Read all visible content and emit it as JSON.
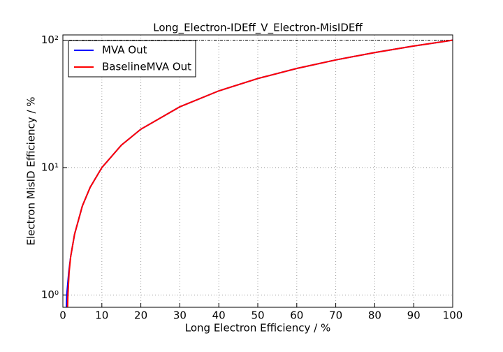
{
  "chart_data": {
    "type": "line",
    "title": "Long_Electron-IDEff_V_Electron-MisIDEff",
    "xlabel": "Long Electron Efficiency / %",
    "ylabel": "Electron MisID Efficiency / %",
    "xlim": [
      0,
      100
    ],
    "xticks": [
      0,
      10,
      20,
      30,
      40,
      50,
      60,
      70,
      80,
      90,
      100
    ],
    "ylim": [
      0.8,
      110
    ],
    "yscale": "log",
    "yticks": [
      {
        "value": 1,
        "label": "10⁰"
      },
      {
        "value": 10,
        "label": "10¹"
      },
      {
        "value": 100,
        "label": "10²"
      }
    ],
    "grid": true,
    "legend": "upper left",
    "hline": 100,
    "series": [
      {
        "name": "MVA Out",
        "color": "#0000ff",
        "x": [
          0.9,
          1,
          1.5,
          2,
          3,
          5,
          7,
          10,
          15,
          20,
          30,
          40,
          50,
          60,
          70,
          80,
          90,
          100
        ],
        "values": [
          0.8,
          1,
          1.5,
          2,
          3,
          5,
          7,
          10,
          15,
          20,
          30,
          40,
          50,
          60,
          70,
          80,
          90,
          100
        ]
      },
      {
        "name": "BaselineMVA Out",
        "color": "#ff0000",
        "x": [
          1.2,
          1.3,
          1.6,
          2,
          3,
          5,
          7,
          10,
          15,
          20,
          30,
          40,
          50,
          60,
          70,
          80,
          90,
          100
        ],
        "values": [
          0.8,
          1,
          1.5,
          2,
          3,
          5,
          7,
          10,
          15,
          20,
          30,
          40,
          50,
          60,
          70,
          80,
          90,
          100
        ]
      }
    ]
  }
}
